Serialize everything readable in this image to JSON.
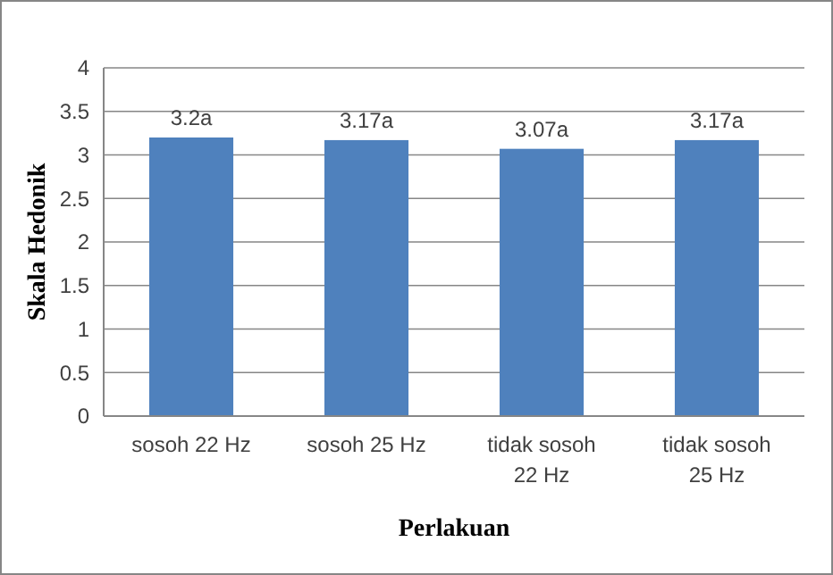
{
  "chart_data": {
    "type": "bar",
    "xlabel": "Perlakuan",
    "ylabel": "Skala Hedonik",
    "categories": [
      "sosoh 22 Hz",
      "sosoh 25 Hz",
      "tidak sosoh 22 Hz",
      "tidak sosoh 25 Hz"
    ],
    "values": [
      3.2,
      3.17,
      3.07,
      3.17
    ],
    "value_labels": [
      "3.2a",
      "3.17a",
      "3.07a",
      "3.17a"
    ],
    "color": "#4f81bd",
    "ylim": [
      0,
      4
    ],
    "yticks": [
      0,
      0.5,
      1,
      1.5,
      2,
      2.5,
      3,
      3.5,
      4
    ],
    "grid": "y"
  }
}
